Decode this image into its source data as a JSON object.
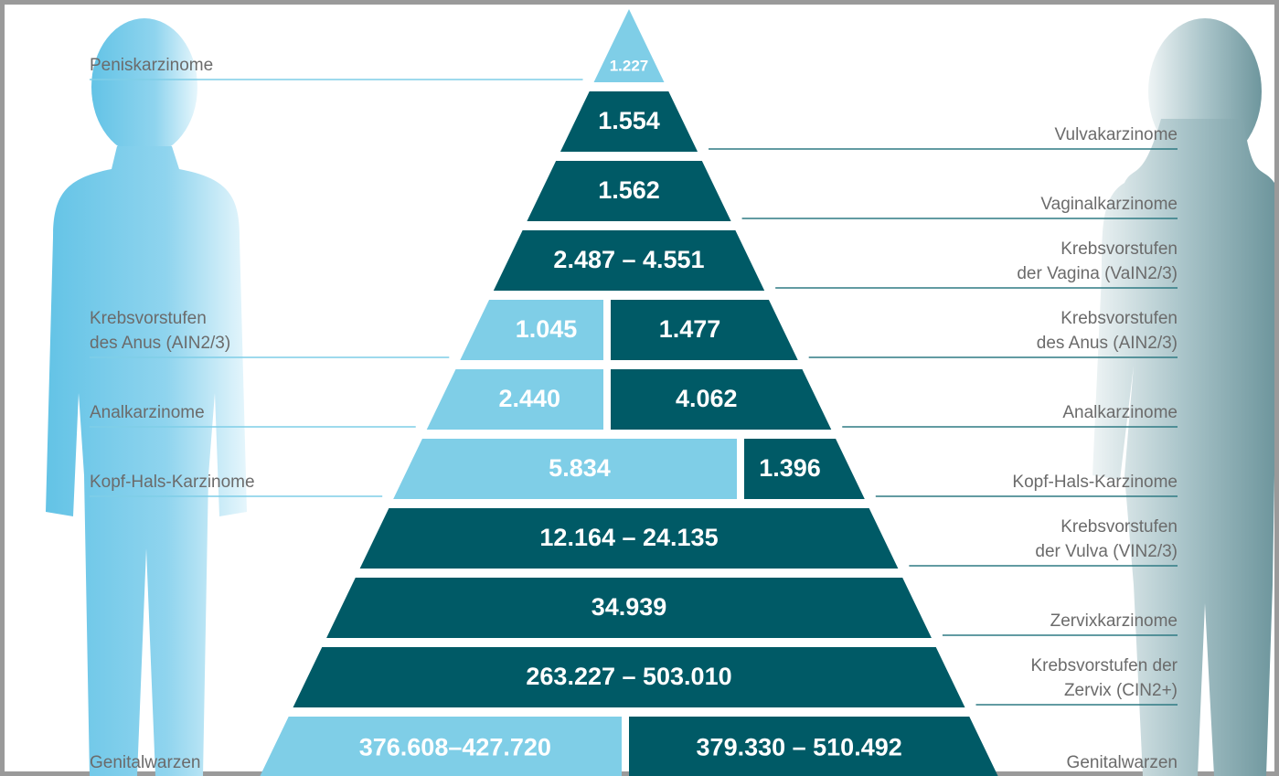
{
  "colors": {
    "light": "#7fcee7",
    "dark": "#005a66"
  },
  "rows": [
    {
      "segments": [
        {
          "text": "1.227",
          "tone": "light"
        }
      ],
      "left": [
        "Peniskarzinome"
      ]
    },
    {
      "segments": [
        {
          "text": "1.554",
          "tone": "dark"
        }
      ],
      "right": [
        "Vulvakarzinome"
      ]
    },
    {
      "segments": [
        {
          "text": "1.562",
          "tone": "dark"
        }
      ],
      "right": [
        "Vaginalkarzinome"
      ]
    },
    {
      "segments": [
        {
          "text": "2.487 – 4.551",
          "tone": "dark"
        }
      ],
      "right": [
        "Krebsvorstufen",
        "der Vagina (VaIN2/3)"
      ]
    },
    {
      "segments": [
        {
          "text": "1.045",
          "tone": "light"
        },
        {
          "text": "1.477",
          "tone": "dark"
        }
      ],
      "left": [
        "Krebsvorstufen",
        "des Anus (AIN2/3)"
      ],
      "right": [
        "Krebsvorstufen",
        "des Anus (AIN2/3)"
      ]
    },
    {
      "segments": [
        {
          "text": "2.440",
          "tone": "light"
        },
        {
          "text": "4.062",
          "tone": "dark"
        }
      ],
      "left": [
        "Analkarzinome"
      ],
      "right": [
        "Analkarzinome"
      ]
    },
    {
      "segments": [
        {
          "text": "5.834",
          "tone": "light"
        },
        {
          "text": "1.396",
          "tone": "dark"
        }
      ],
      "left": [
        "Kopf-Hals-Karzinome"
      ],
      "right": [
        "Kopf-Hals-Karzinome"
      ]
    },
    {
      "segments": [
        {
          "text": "12.164 – 24.135",
          "tone": "dark"
        }
      ],
      "right": [
        "Krebsvorstufen",
        "der Vulva (VIN2/3)"
      ]
    },
    {
      "segments": [
        {
          "text": "34.939",
          "tone": "dark"
        }
      ],
      "right": [
        "Zervixkarzinome"
      ]
    },
    {
      "segments": [
        {
          "text": "263.227 – 503.010",
          "tone": "dark"
        }
      ],
      "right": [
        "Krebsvorstufen der",
        "Zervix (CIN2+)"
      ]
    },
    {
      "segments": [
        {
          "text": "376.608–427.720",
          "tone": "light"
        },
        {
          "text": "379.330 – 510.492",
          "tone": "dark"
        }
      ],
      "left": [
        "Genitalwarzen"
      ],
      "right": [
        "Genitalwarzen"
      ]
    }
  ]
}
